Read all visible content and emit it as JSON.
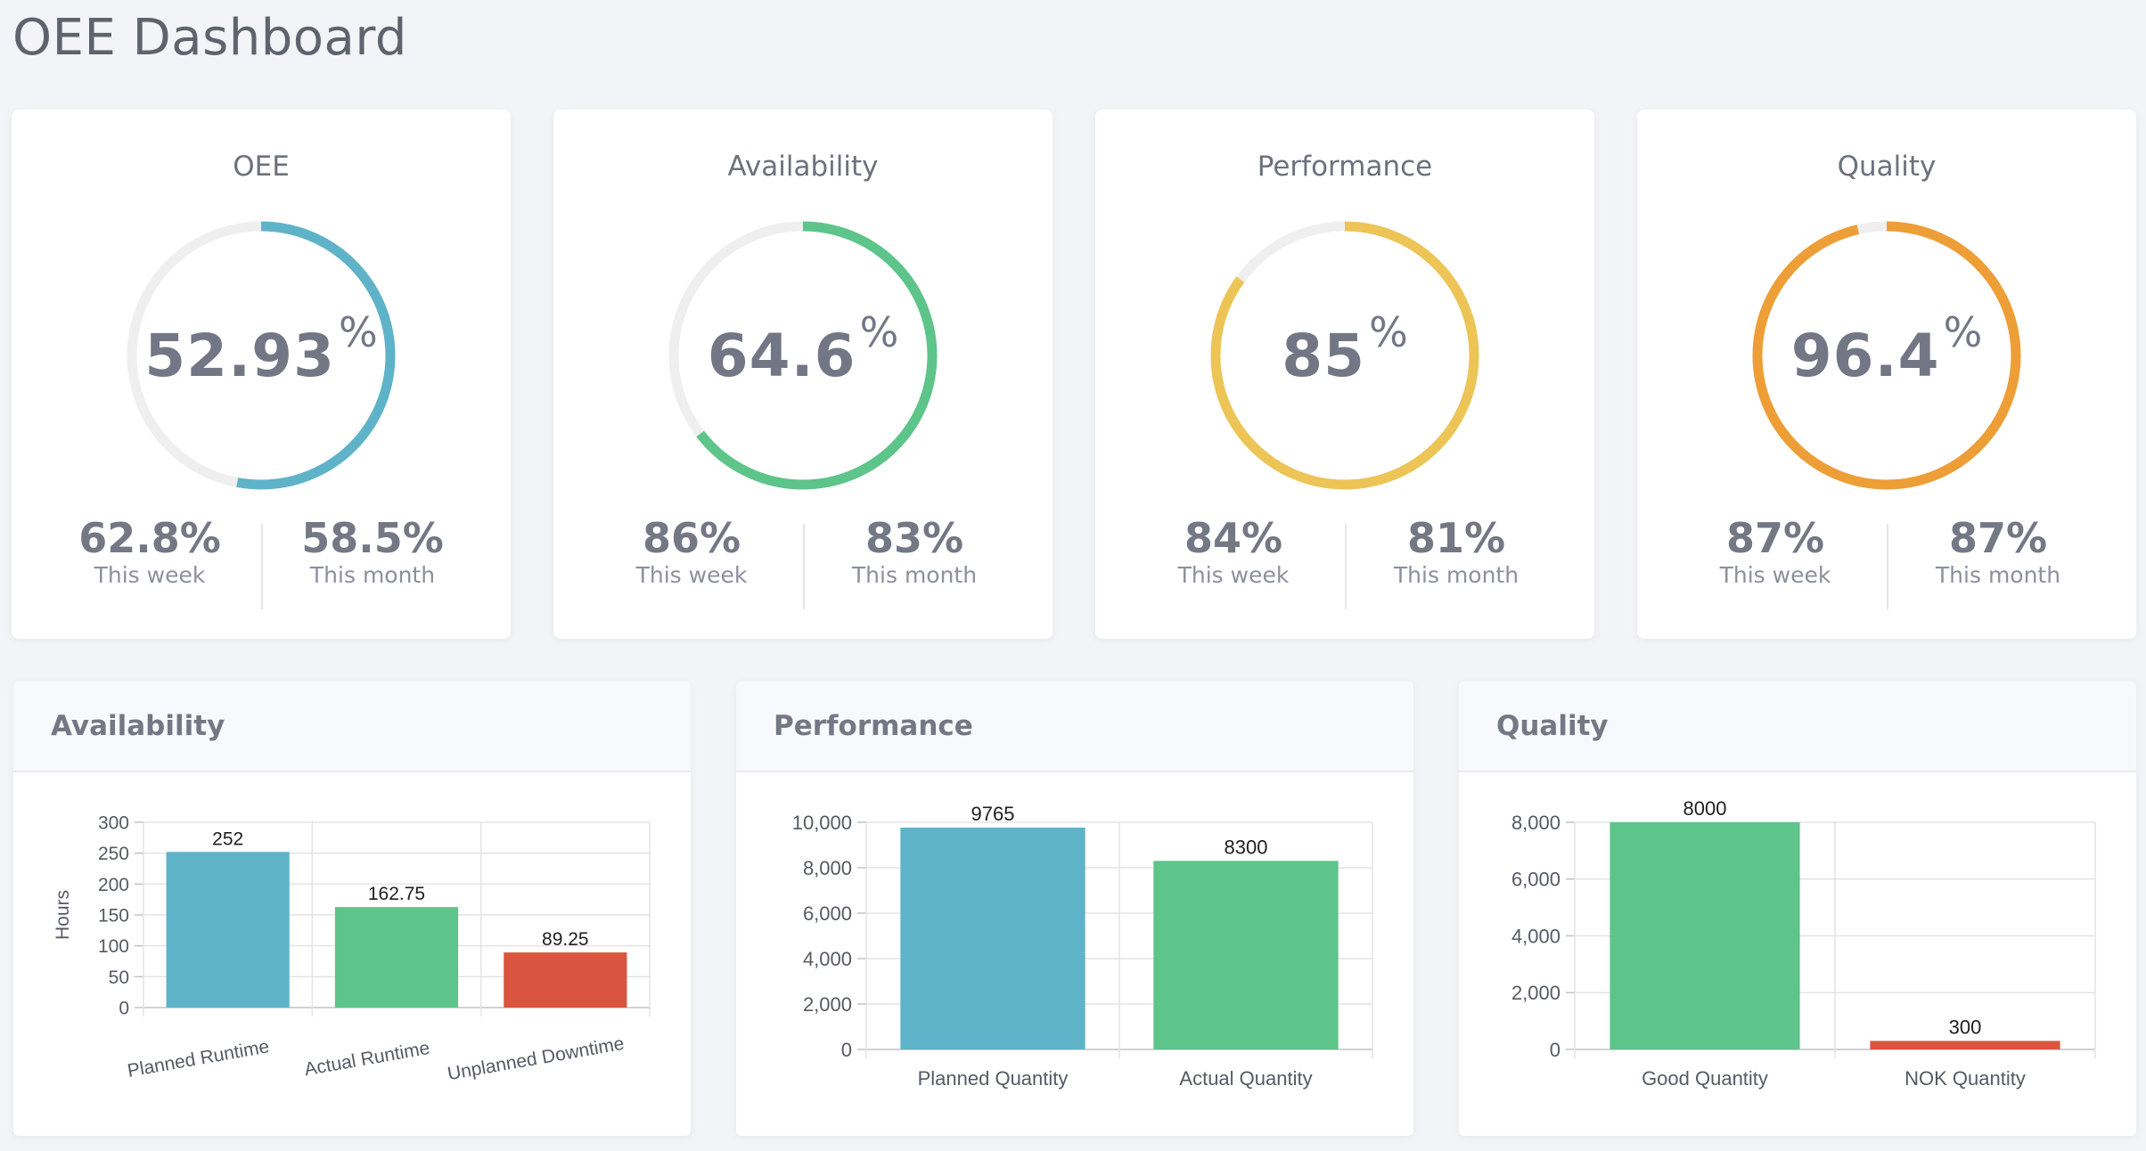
{
  "page": {
    "title": "OEE Dashboard"
  },
  "kpis": [
    {
      "title": "OEE",
      "value": "52.93",
      "fraction": 0.5293,
      "unit": "%",
      "color": "#5fb3c8",
      "week_value": "62.8%",
      "week_label": "This week",
      "month_value": "58.5%",
      "month_label": "This month"
    },
    {
      "title": "Availability",
      "value": "64.6",
      "fraction": 0.646,
      "unit": "%",
      "color": "#5dc48a",
      "week_value": "86%",
      "week_label": "This week",
      "month_value": "83%",
      "month_label": "This month"
    },
    {
      "title": "Performance",
      "value": "85",
      "fraction": 0.85,
      "unit": "%",
      "color": "#edc456",
      "week_value": "84%",
      "week_label": "This week",
      "month_value": "81%",
      "month_label": "This month"
    },
    {
      "title": "Quality",
      "value": "96.4",
      "fraction": 0.964,
      "unit": "%",
      "color": "#ee9e36",
      "week_value": "87%",
      "week_label": "This week",
      "month_value": "87%",
      "month_label": "This month"
    }
  ],
  "chart_data": [
    {
      "type": "bar",
      "title": "Availability",
      "ylabel": "Hours",
      "xlabel": "",
      "categories": [
        "Planned Runtime",
        "Actual Runtime",
        "Unplanned Downtime"
      ],
      "values": [
        252,
        162.75,
        89.25
      ],
      "value_labels": [
        "252",
        "162.75",
        "89.25"
      ],
      "colors": [
        "#5fb3c8",
        "#5dc48a",
        "#d95540"
      ],
      "ylim": [
        0,
        300
      ],
      "yticks": [
        0,
        50,
        100,
        150,
        200,
        250,
        300
      ],
      "ytick_labels": [
        "0",
        "50",
        "100",
        "150",
        "200",
        "250",
        "300"
      ],
      "grid": true,
      "rotated_labels": true
    },
    {
      "type": "bar",
      "title": "Performance",
      "ylabel": "",
      "xlabel": "",
      "categories": [
        "Planned Quantity",
        "Actual Quantity"
      ],
      "values": [
        9765,
        8300
      ],
      "value_labels": [
        "9765",
        "8300"
      ],
      "colors": [
        "#5fb3c8",
        "#5dc48a"
      ],
      "ylim": [
        0,
        10000
      ],
      "yticks": [
        0,
        2000,
        4000,
        6000,
        8000,
        10000
      ],
      "ytick_labels": [
        "0",
        "2,000",
        "4,000",
        "6,000",
        "8,000",
        "10,000"
      ],
      "grid": true,
      "rotated_labels": false
    },
    {
      "type": "bar",
      "title": "Quality",
      "ylabel": "",
      "xlabel": "",
      "categories": [
        "Good Quantity",
        "NOK Quantity"
      ],
      "values": [
        8000,
        300
      ],
      "value_labels": [
        "8000",
        "300"
      ],
      "colors": [
        "#5dc48a",
        "#d95540"
      ],
      "ylim": [
        0,
        8000
      ],
      "yticks": [
        0,
        2000,
        4000,
        6000,
        8000
      ],
      "ytick_labels": [
        "0",
        "2,000",
        "4,000",
        "6,000",
        "8,000"
      ],
      "grid": true,
      "rotated_labels": false
    }
  ]
}
